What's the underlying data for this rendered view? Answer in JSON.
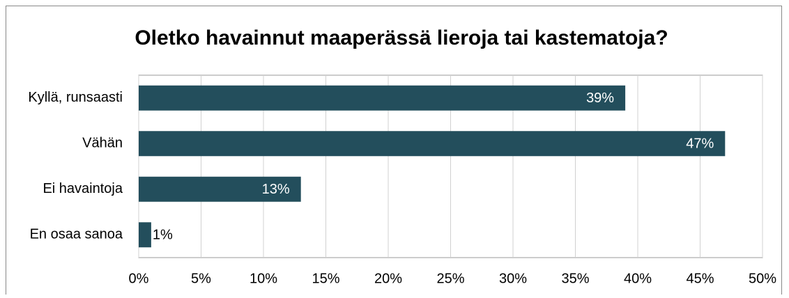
{
  "chart_data": {
    "type": "bar",
    "orientation": "horizontal",
    "title": "Oletko havainnut maaperässä lieroja tai kastematoja?",
    "categories": [
      "Kyllä, runsaasti",
      "Vähän",
      "Ei havaintoja",
      "En osaa sanoa"
    ],
    "values": [
      39,
      47,
      13,
      1
    ],
    "value_labels": [
      "39%",
      "47%",
      "13%",
      "1%"
    ],
    "color": "#234e5c",
    "xlim": [
      0,
      50
    ],
    "xticks": [
      {
        "value": 0,
        "label": "0%"
      },
      {
        "value": 5,
        "label": "5%"
      },
      {
        "value": 10,
        "label": "10%"
      },
      {
        "value": 15,
        "label": "15%"
      },
      {
        "value": 20,
        "label": "20%"
      },
      {
        "value": 25,
        "label": "25%"
      },
      {
        "value": 30,
        "label": "30%"
      },
      {
        "value": 35,
        "label": "35%"
      },
      {
        "value": 40,
        "label": "40%"
      },
      {
        "value": 45,
        "label": "45%"
      },
      {
        "value": 50,
        "label": "50%"
      }
    ],
    "grid": true
  }
}
